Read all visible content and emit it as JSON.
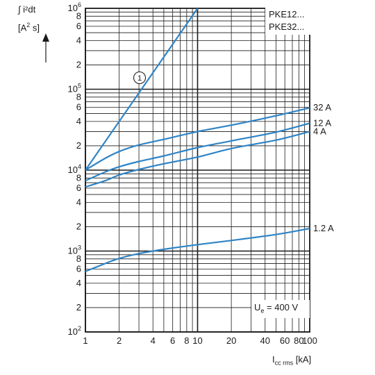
{
  "y_axis": {
    "line1": "∫ i²dt",
    "unit_pre": "[A",
    "unit_sup": "2",
    "unit_post": " s]"
  },
  "x_axis": {
    "main": "I",
    "sub": "cc rms",
    "unit": " [kA]"
  },
  "legend": {
    "line1": "PKE12...",
    "line2": "PKE32..."
  },
  "ue_label": {
    "main": "U",
    "sub": "e",
    "value": " = 400 V"
  },
  "chart_data": {
    "type": "line",
    "x_scale": "log",
    "y_scale": "log",
    "xlim": [
      1,
      100
    ],
    "ylim": [
      100,
      1000000
    ],
    "x_ticks": [
      {
        "v": 1,
        "label": "1"
      },
      {
        "v": 2,
        "label": "2"
      },
      {
        "v": 4,
        "label": "4"
      },
      {
        "v": 6,
        "label": "6"
      },
      {
        "v": 8,
        "label": "8"
      },
      {
        "v": 10,
        "label": "10"
      },
      {
        "v": 20,
        "label": "20"
      },
      {
        "v": 40,
        "label": "40"
      },
      {
        "v": 60,
        "label": "60"
      },
      {
        "v": 80,
        "label": "80"
      },
      {
        "v": 100,
        "label": "100"
      }
    ],
    "y_ticks": [
      {
        "v": 100,
        "mant": "10",
        "exp": "2"
      },
      {
        "v": 200,
        "mant": "2",
        "exp": ""
      },
      {
        "v": 400,
        "mant": "4",
        "exp": ""
      },
      {
        "v": 600,
        "mant": "6",
        "exp": ""
      },
      {
        "v": 800,
        "mant": "8",
        "exp": ""
      },
      {
        "v": 1000,
        "mant": "10",
        "exp": "3"
      },
      {
        "v": 2000,
        "mant": "2",
        "exp": ""
      },
      {
        "v": 4000,
        "mant": "4",
        "exp": ""
      },
      {
        "v": 6000,
        "mant": "6",
        "exp": ""
      },
      {
        "v": 8000,
        "mant": "8",
        "exp": ""
      },
      {
        "v": 10000,
        "mant": "10",
        "exp": "4"
      },
      {
        "v": 20000,
        "mant": "2",
        "exp": ""
      },
      {
        "v": 40000,
        "mant": "4",
        "exp": ""
      },
      {
        "v": 60000,
        "mant": "6",
        "exp": ""
      },
      {
        "v": 80000,
        "mant": "8",
        "exp": ""
      },
      {
        "v": 100000,
        "mant": "10",
        "exp": "5"
      },
      {
        "v": 200000,
        "mant": "2",
        "exp": ""
      },
      {
        "v": 400000,
        "mant": "4",
        "exp": ""
      },
      {
        "v": 600000,
        "mant": "6",
        "exp": ""
      },
      {
        "v": 800000,
        "mant": "8",
        "exp": ""
      },
      {
        "v": 1000000,
        "mant": "10",
        "exp": "6"
      }
    ],
    "grid": true,
    "series": [
      {
        "name": "1",
        "label_style": "circled",
        "x": [
          1,
          10
        ],
        "y": [
          10000,
          1000000
        ]
      },
      {
        "name": "32 A",
        "x": [
          1,
          1.5,
          2,
          3,
          5,
          10,
          20,
          50,
          100
        ],
        "y": [
          10000,
          14000,
          17000,
          20500,
          24000,
          30000,
          36000,
          47000,
          59000
        ]
      },
      {
        "name": "12 A",
        "x": [
          1,
          1.5,
          2,
          3,
          5,
          10,
          20,
          50,
          100
        ],
        "y": [
          7400,
          9500,
          11000,
          12800,
          15000,
          19000,
          23000,
          29500,
          38000
        ]
      },
      {
        "name": "4 A",
        "x": [
          1,
          1.5,
          2,
          3,
          5,
          10,
          20,
          50,
          100
        ],
        "y": [
          6200,
          7400,
          8700,
          10200,
          12000,
          14500,
          18500,
          23500,
          30000
        ]
      },
      {
        "name": "1.2 A",
        "x": [
          1,
          1.5,
          2,
          3,
          5,
          10,
          20,
          50,
          100
        ],
        "y": [
          560,
          700,
          810,
          930,
          1050,
          1200,
          1350,
          1600,
          1900
        ]
      }
    ],
    "colors": {
      "line": "#2f84c6",
      "grid": "#1a1a1a"
    }
  }
}
